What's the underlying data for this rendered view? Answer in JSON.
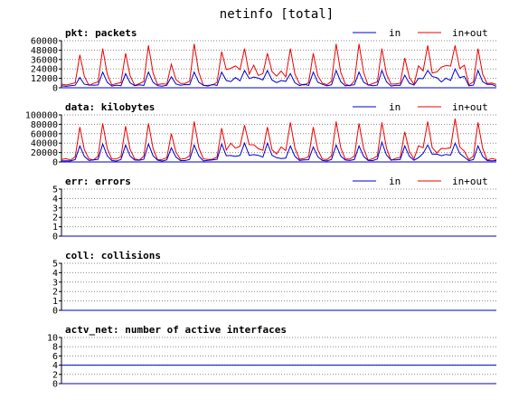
{
  "title": "netinfo [total]",
  "colors": {
    "in": "#0000cc",
    "in_out": "#ee0000",
    "grid": "#888888",
    "axis": "#000000"
  },
  "chart_data": [
    {
      "id": "pkt",
      "type": "line",
      "title": "pkt: packets",
      "legend_position": "top-right",
      "ylim": [
        0,
        60000
      ],
      "yticks": [
        0,
        12000,
        24000,
        36000,
        48000,
        60000
      ],
      "ytick_labels": [
        "0",
        "12000",
        "24000",
        "36000",
        "48000",
        "60000"
      ],
      "n_points": 96,
      "series": [
        {
          "name": "in",
          "color": "#0000cc",
          "events": [
            [
              4,
              13000
            ],
            [
              9,
              20000
            ],
            [
              14,
              18000
            ],
            [
              19,
              20000
            ],
            [
              24,
              14000
            ],
            [
              29,
              20000
            ],
            [
              35,
              20000
            ],
            [
              40,
              22000
            ],
            [
              45,
              22000
            ],
            [
              50,
              18000
            ],
            [
              55,
              20000
            ],
            [
              60,
              22000
            ],
            [
              65,
              20000
            ],
            [
              70,
              22000
            ],
            [
              75,
              16000
            ],
            [
              80,
              22000
            ],
            [
              86,
              24000
            ],
            [
              91,
              22000
            ]
          ],
          "baseline": 3000,
          "plateaus": [
            [
              35,
              44,
              12000
            ],
            [
              45,
              49,
              9000
            ],
            [
              78,
              88,
              13000
            ]
          ]
        },
        {
          "name": "in+out",
          "color": "#ee0000",
          "events": [
            [
              4,
              42000
            ],
            [
              9,
              50000
            ],
            [
              14,
              44000
            ],
            [
              19,
              54000
            ],
            [
              24,
              30000
            ],
            [
              29,
              56000
            ],
            [
              35,
              46000
            ],
            [
              40,
              50000
            ],
            [
              45,
              44000
            ],
            [
              50,
              50000
            ],
            [
              55,
              44000
            ],
            [
              60,
              56000
            ],
            [
              65,
              56000
            ],
            [
              70,
              50000
            ],
            [
              75,
              38000
            ],
            [
              80,
              54000
            ],
            [
              86,
              54000
            ],
            [
              91,
              50000
            ]
          ],
          "baseline": 4000,
          "plateaus": [
            [
              35,
              44,
              26000
            ],
            [
              45,
              49,
              20000
            ],
            [
              78,
              88,
              27000
            ]
          ]
        }
      ]
    },
    {
      "id": "data",
      "type": "line",
      "title": "data: kilobytes",
      "legend_position": "top-right",
      "ylim": [
        0,
        100000
      ],
      "yticks": [
        0,
        20000,
        40000,
        60000,
        80000,
        100000
      ],
      "ytick_labels": [
        "0",
        "20000",
        "40000",
        "60000",
        "80000",
        "100000"
      ],
      "n_points": 96,
      "series": [
        {
          "name": "in",
          "color": "#0000cc",
          "events": [
            [
              4,
              34000
            ],
            [
              9,
              38000
            ],
            [
              14,
              36000
            ],
            [
              19,
              38000
            ],
            [
              24,
              30000
            ],
            [
              29,
              36000
            ],
            [
              35,
              38000
            ],
            [
              40,
              40000
            ],
            [
              45,
              40000
            ],
            [
              50,
              34000
            ],
            [
              55,
              32000
            ],
            [
              60,
              36000
            ],
            [
              65,
              34000
            ],
            [
              70,
              42000
            ],
            [
              75,
              34000
            ],
            [
              80,
              36000
            ],
            [
              86,
              40000
            ],
            [
              91,
              34000
            ]
          ],
          "baseline": 3000,
          "plateaus": [
            [
              35,
              44,
              14000
            ],
            [
              45,
              49,
              10000
            ],
            [
              78,
              88,
              16000
            ]
          ]
        },
        {
          "name": "in+out",
          "color": "#ee0000",
          "events": [
            [
              4,
              74000
            ],
            [
              9,
              82000
            ],
            [
              14,
              76000
            ],
            [
              19,
              82000
            ],
            [
              24,
              60000
            ],
            [
              29,
              86000
            ],
            [
              35,
              72000
            ],
            [
              40,
              78000
            ],
            [
              45,
              74000
            ],
            [
              50,
              84000
            ],
            [
              55,
              74000
            ],
            [
              60,
              86000
            ],
            [
              65,
              82000
            ],
            [
              70,
              84000
            ],
            [
              75,
              64000
            ],
            [
              80,
              86000
            ],
            [
              86,
              92000
            ],
            [
              91,
              84000
            ]
          ],
          "baseline": 5000,
          "plateaus": [
            [
              35,
              44,
              36000
            ],
            [
              45,
              49,
              30000
            ],
            [
              78,
              88,
              32000
            ]
          ]
        }
      ]
    },
    {
      "id": "err",
      "type": "line",
      "title": "err: errors",
      "legend_position": "top-right",
      "ylim": [
        0,
        5
      ],
      "yticks": [
        0,
        1,
        2,
        3,
        4,
        5
      ],
      "ytick_labels": [
        "0",
        "1",
        "2",
        "3",
        "4",
        "5"
      ],
      "n_points": 96,
      "series": [
        {
          "name": "in",
          "color": "#0000cc",
          "constant": 0
        },
        {
          "name": "in+out",
          "color": "#ee0000",
          "constant": 0
        }
      ]
    },
    {
      "id": "coll",
      "type": "line",
      "title": "coll: collisions",
      "legend_position": "none",
      "ylim": [
        0,
        5
      ],
      "yticks": [
        0,
        1,
        2,
        3,
        4,
        5
      ],
      "ytick_labels": [
        "0",
        "1",
        "2",
        "3",
        "4",
        "5"
      ],
      "n_points": 96,
      "series": [
        {
          "color": "#0000cc",
          "constant": 0
        }
      ]
    },
    {
      "id": "actv_net",
      "type": "line",
      "title": "actv_net: number of active interfaces",
      "legend_position": "none",
      "ylim": [
        0,
        10
      ],
      "yticks": [
        0,
        2,
        4,
        6,
        8,
        10
      ],
      "ytick_labels": [
        "0",
        "2",
        "4",
        "6",
        "8",
        "10"
      ],
      "n_points": 96,
      "series": [
        {
          "color": "#0000cc",
          "constant": 4
        }
      ]
    }
  ]
}
